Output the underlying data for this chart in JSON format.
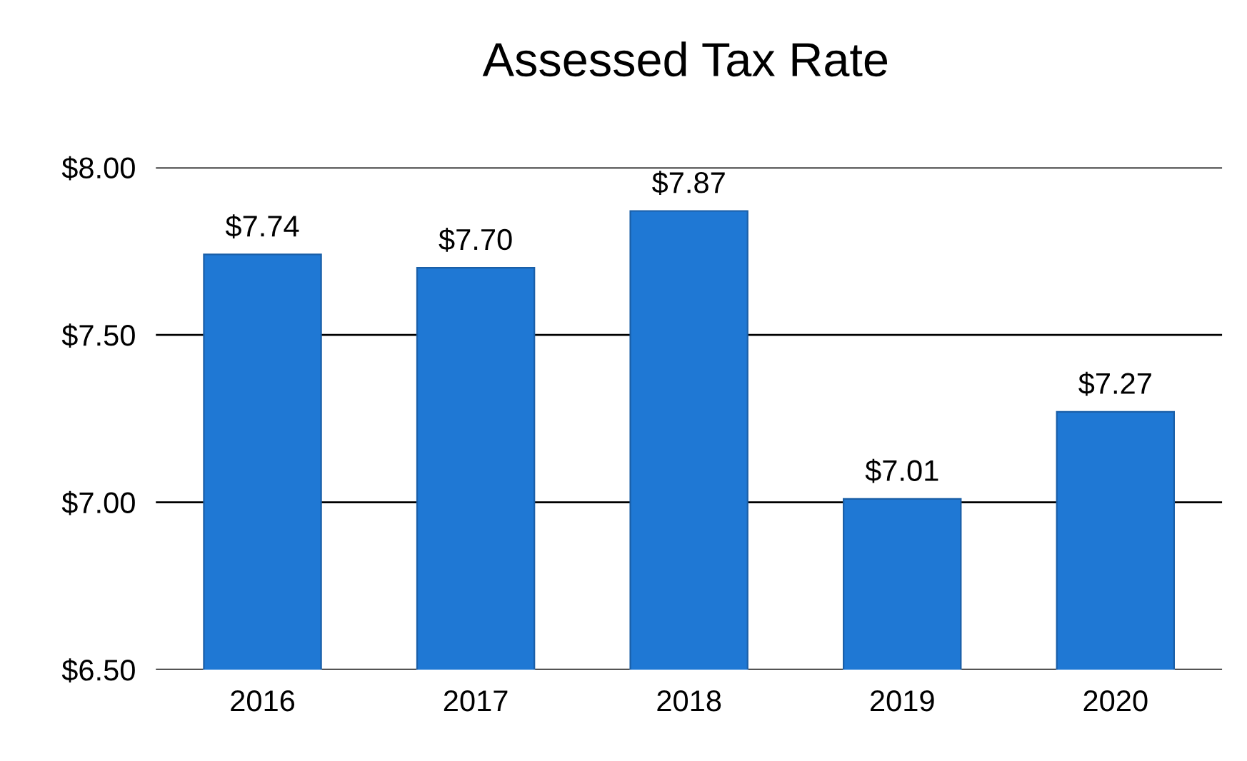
{
  "chart_data": {
    "type": "bar",
    "title": "Assessed Tax Rate",
    "categories": [
      "2016",
      "2017",
      "2018",
      "2019",
      "2020"
    ],
    "values": [
      7.74,
      7.7,
      7.87,
      7.01,
      7.27
    ],
    "value_labels": [
      "$7.74",
      "$7.70",
      "$7.87",
      "$7.01",
      "$7.27"
    ],
    "color": "#1f78d4",
    "ylim": [
      6.5,
      8.0
    ],
    "yticks": [
      {
        "value": 6.5,
        "label": "$6.50"
      },
      {
        "value": 7.0,
        "label": "$7.00"
      },
      {
        "value": 7.5,
        "label": "$7.50"
      },
      {
        "value": 8.0,
        "label": "$8.00"
      }
    ],
    "grid": "y",
    "legend": false
  }
}
